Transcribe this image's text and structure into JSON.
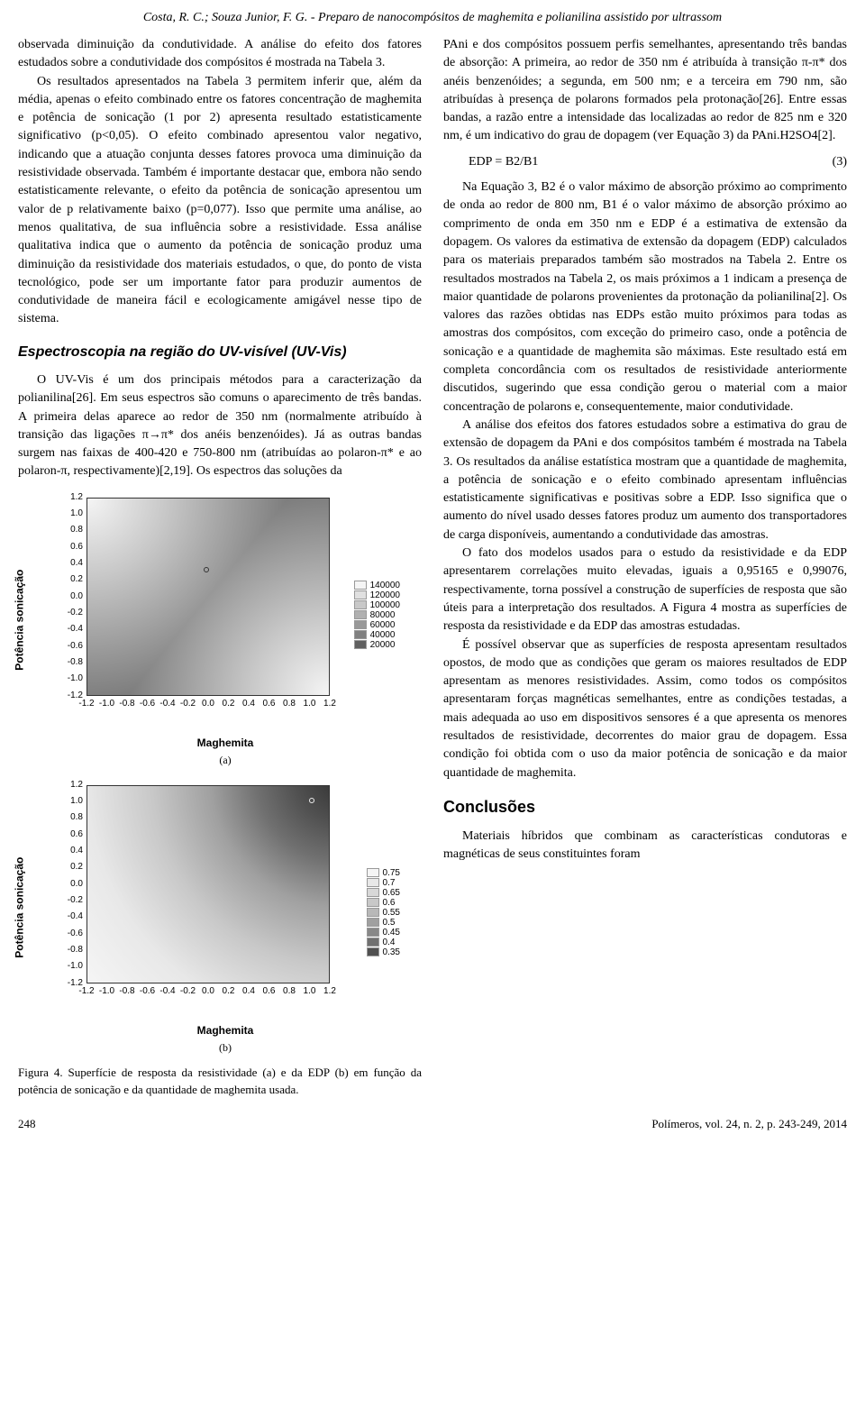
{
  "header": "Costa, R. C.; Souza Junior, F. G. - Preparo de nanocompósitos de maghemita e polianilina assistido por ultrassom",
  "left_column": {
    "p1": "observada diminuição da condutividade. A análise do efeito dos fatores estudados sobre a condutividade dos compósitos é mostrada na Tabela 3.",
    "p2": "Os resultados apresentados na Tabela 3 permitem inferir que, além da média, apenas o efeito combinado entre os fatores concentração de maghemita e potência de sonicação (1 por 2) apresenta resultado estatisticamente significativo (p<0,05). O efeito combinado apresentou valor negativo, indicando que a atuação conjunta desses fatores provoca uma diminuição da resistividade observada. Também é importante destacar que, embora não sendo estatisticamente relevante, o efeito da potência de sonicação apresentou um valor de p relativamente baixo (p=0,077). Isso que permite uma análise, ao menos qualitativa, de sua influência sobre a resistividade. Essa análise qualitativa indica que o aumento da potência de sonicação produz uma diminuição da resistividade dos materiais estudados, o que, do ponto de vista tecnológico, pode ser um importante fator para produzir aumentos de condutividade de maneira fácil e ecologicamente amigável nesse tipo de sistema.",
    "heading1": "Espectroscopia na região do UV-visível (UV-Vis)",
    "p3": "O UV-Vis é um dos principais métodos para a caracterização da polianilina[26]. Em seus espectros são comuns o aparecimento de três bandas. A primeira delas aparece ao redor de 350 nm (normalmente atribuído à transição das ligações π→π* dos anéis benzenóides). Já as outras bandas surgem nas faixas de 400-420 e 750-800 nm (atribuídas ao polaron-π* e ao polaron-π, respectivamente)[2,19]. Os espectros das soluções da",
    "figure_caption": "Figura 4. Superfície de resposta da resistividade (a) e da EDP (b) em função da potência de sonicação e da quantidade de maghemita usada."
  },
  "right_column": {
    "p1": "PAni e dos compósitos possuem perfis semelhantes, apresentando três bandas de absorção: A primeira, ao redor de 350 nm é atribuída à transição π-π* dos anéis benzenóides; a segunda, em 500 nm; e a terceira em 790 nm, são atribuídas à presença de polarons formados pela protonação[26]. Entre essas bandas, a razão entre a intensidade das localizadas ao redor de 825 nm e 320 nm, é um indicativo do grau de dopagem (ver Equação 3) da PAni.H2SO4[2].",
    "eq": "EDP = B2/B1",
    "eq_num": "(3)",
    "p2": "Na Equação 3, B2 é o valor máximo de absorção próximo ao comprimento de onda ao redor de 800 nm, B1 é o valor máximo de absorção próximo ao comprimento de onda em 350 nm e EDP é a estimativa de extensão da dopagem. Os valores da estimativa de extensão da dopagem (EDP) calculados para os materiais preparados também são mostrados na Tabela 2. Entre os resultados mostrados na Tabela 2, os mais próximos a 1 indicam a presença de maior quantidade de polarons provenientes da protonação da polianilina[2]. Os valores das razões obtidas nas EDPs estão muito próximos para todas as amostras dos compósitos, com exceção do primeiro caso, onde a potência de sonicação e a quantidade de maghemita são máximas. Este resultado está em completa concordância com os resultados de resistividade anteriormente discutidos, sugerindo que essa condição gerou o material com a maior concentração de polarons e, consequentemente, maior condutividade.",
    "p3": "A análise dos efeitos dos fatores estudados sobre a estimativa do grau de extensão de dopagem da PAni e dos compósitos também é mostrada na Tabela 3. Os resultados da análise estatística mostram que a quantidade de maghemita, a potência de sonicação e o efeito combinado apresentam influências estatisticamente significativas e positivas sobre a EDP. Isso significa que o aumento do nível usado desses fatores produz um aumento dos transportadores de carga disponíveis, aumentando a condutividade das amostras.",
    "p4": "O fato dos modelos usados para o estudo da resistividade e da EDP apresentarem correlações muito elevadas, iguais a 0,95165 e 0,99076, respectivamente, torna possível a construção de superfícies de resposta que são úteis para a interpretação dos resultados. A Figura 4 mostra as superfícies de resposta da resistividade e da EDP das amostras estudadas.",
    "p5": "É possível observar que as superfícies de resposta apresentam resultados opostos, de modo que as condições que geram os maiores resultados de EDP apresentam as menores resistividades. Assim, como todos os compósitos apresentaram forças magnéticas semelhantes, entre as condições testadas, a mais adequada ao uso em dispositivos sensores é a que apresenta os menores resultados de resistividade, decorrentes do maior grau de dopagem. Essa condição foi obtida com o uso da maior potência de sonicação e da maior quantidade de maghemita.",
    "heading2": "Conclusões",
    "p6": "Materiais híbridos que combinam as características condutoras e magnéticas de seus constituintes foram"
  },
  "chart_a": {
    "type": "contour",
    "xlabel": "Maghemita",
    "ylabel": "Potência sonicação",
    "sublabel": "(a)",
    "xticks": [
      "-1.2",
      "-1.0",
      "-0.8",
      "-0.6",
      "-0.4",
      "-0.2",
      "0.0",
      "0.2",
      "0.4",
      "0.6",
      "0.8",
      "1.0",
      "1.2"
    ],
    "yticks": [
      "1.2",
      "1.0",
      "0.8",
      "0.6",
      "0.4",
      "0.2",
      "0.0",
      "-0.2",
      "-0.4",
      "-0.6",
      "-0.8",
      "-1.0",
      "-1.2"
    ],
    "legend": [
      "140000",
      "120000",
      "100000",
      "80000",
      "60000",
      "40000",
      "20000"
    ],
    "colors_light_to_dark": [
      "#f5f5f5",
      "#e0e0e0",
      "#c8c8c8",
      "#b0b0b0",
      "#989898",
      "#808080",
      "#606060",
      "#404040"
    ]
  },
  "chart_b": {
    "type": "contour",
    "xlabel": "Maghemita",
    "ylabel": "Potência sonicação",
    "sublabel": "(b)",
    "xticks": [
      "-1.2",
      "-1.0",
      "-0.8",
      "-0.6",
      "-0.4",
      "-0.2",
      "0.0",
      "0.2",
      "0.4",
      "0.6",
      "0.8",
      "1.0",
      "1.2"
    ],
    "yticks": [
      "1.2",
      "1.0",
      "0.8",
      "0.6",
      "0.4",
      "0.2",
      "0.0",
      "-0.2",
      "-0.4",
      "-0.6",
      "-0.8",
      "-1.0",
      "-1.2"
    ],
    "legend": [
      "0.75",
      "0.7",
      "0.65",
      "0.6",
      "0.55",
      "0.5",
      "0.45",
      "0.4",
      "0.35"
    ],
    "colors_light_to_dark": [
      "#f5f5f5",
      "#e8e8e8",
      "#d8d8d8",
      "#c8c8c8",
      "#b8b8b8",
      "#a0a0a0",
      "#888888",
      "#707070",
      "#505050",
      "#303030"
    ]
  },
  "footer": {
    "page": "248",
    "citation": "Polímeros, vol. 24, n. 2, p. 243-249, 2014"
  }
}
